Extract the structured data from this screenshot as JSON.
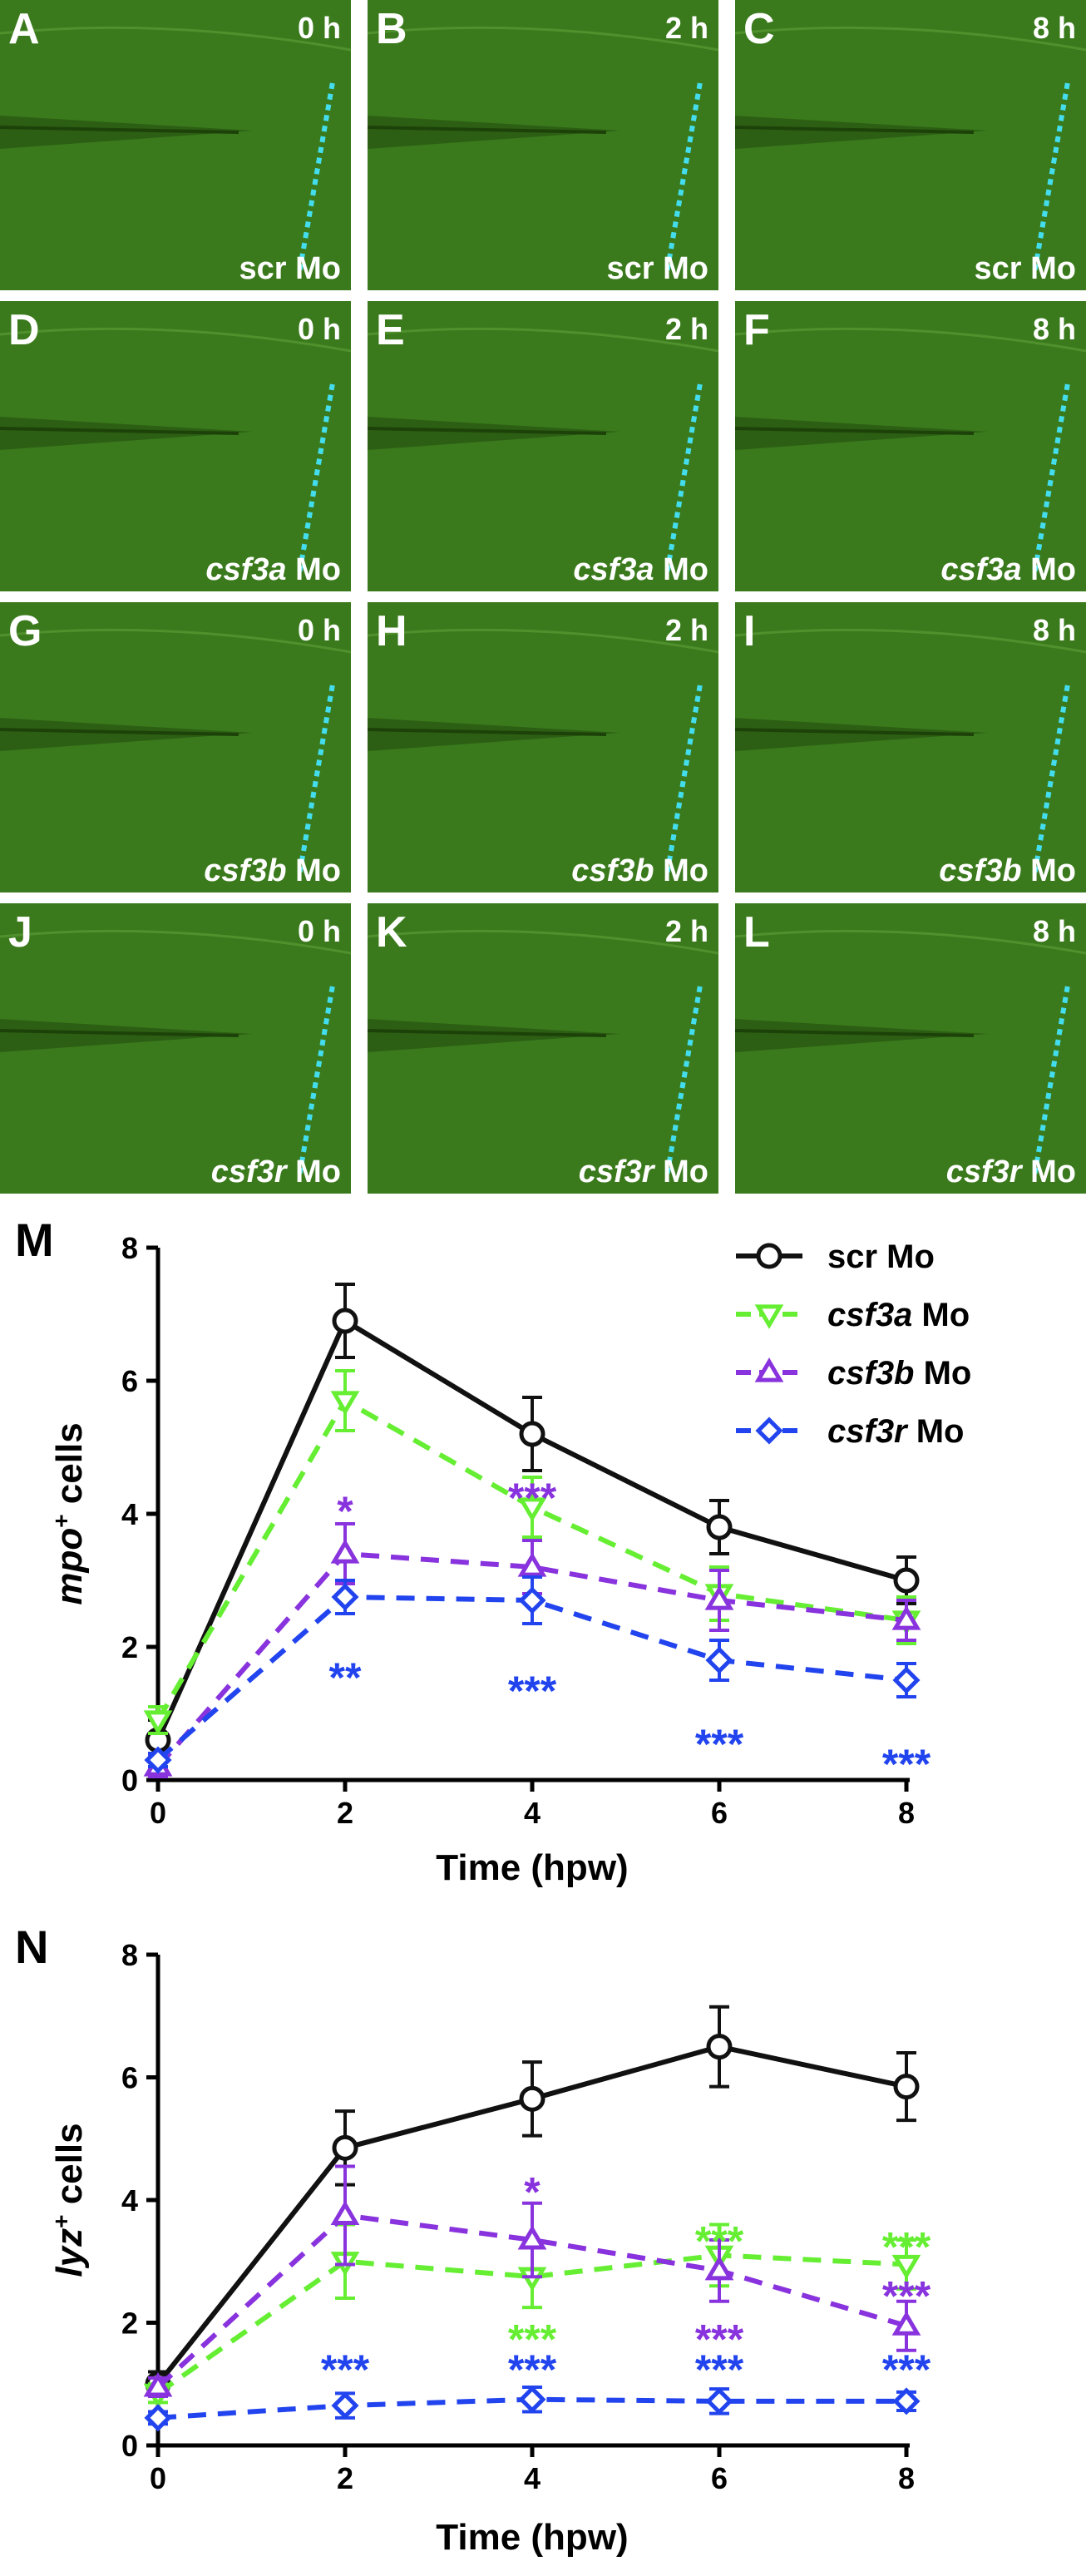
{
  "panels": [
    {
      "letter": "A",
      "time": "0 h",
      "treatment": "scr",
      "suffix": "Mo",
      "italic": false
    },
    {
      "letter": "B",
      "time": "2 h",
      "treatment": "scr",
      "suffix": "Mo",
      "italic": false
    },
    {
      "letter": "C",
      "time": "8 h",
      "treatment": "scr",
      "suffix": "Mo",
      "italic": false
    },
    {
      "letter": "D",
      "time": "0 h",
      "treatment": "csf3a",
      "suffix": "Mo",
      "italic": true
    },
    {
      "letter": "E",
      "time": "2 h",
      "treatment": "csf3a",
      "suffix": "Mo",
      "italic": true
    },
    {
      "letter": "F",
      "time": "8 h",
      "treatment": "csf3a",
      "suffix": "Mo",
      "italic": true
    },
    {
      "letter": "G",
      "time": "0 h",
      "treatment": "csf3b",
      "suffix": "Mo",
      "italic": true
    },
    {
      "letter": "H",
      "time": "2 h",
      "treatment": "csf3b",
      "suffix": "Mo",
      "italic": true
    },
    {
      "letter": "I",
      "time": "8 h",
      "treatment": "csf3b",
      "suffix": "Mo",
      "italic": true
    },
    {
      "letter": "J",
      "time": "0 h",
      "treatment": "csf3r",
      "suffix": "Mo",
      "italic": true
    },
    {
      "letter": "K",
      "time": "2 h",
      "treatment": "csf3r",
      "suffix": "Mo",
      "italic": true
    },
    {
      "letter": "L",
      "time": "8 h",
      "treatment": "csf3r",
      "suffix": "Mo",
      "italic": true
    }
  ],
  "colors": {
    "scr": "#111111",
    "csf3a": "#66ee33",
    "csf3b": "#8833dd",
    "csf3r": "#2244ee",
    "panel_green": "#3a7a1c",
    "wound_line": "#44ddee"
  },
  "chart_data": [
    {
      "panel_letter": "M",
      "type": "line",
      "xlabel": "Time (hpw)",
      "ylabel_main": "mpo",
      "ylabel_sup": "+",
      "ylabel_rest": " cells",
      "xlim": [
        0,
        8
      ],
      "ylim": [
        0,
        8
      ],
      "xticks": [
        0,
        2,
        4,
        6,
        8
      ],
      "yticks": [
        0,
        2,
        4,
        6,
        8
      ],
      "legend_position": "top-right",
      "x": [
        0,
        2,
        4,
        6,
        8
      ],
      "series": [
        {
          "name": "scr",
          "name_suffix": " Mo",
          "italic": false,
          "color_key": "scr",
          "marker": "circle",
          "dashed": false,
          "values": [
            0.6,
            6.9,
            5.2,
            3.8,
            3.0
          ],
          "errors": [
            0.3,
            0.55,
            0.55,
            0.4,
            0.35
          ]
        },
        {
          "name": "csf3a",
          "name_suffix": " Mo",
          "italic": true,
          "color_key": "csf3a",
          "marker": "triangle-down",
          "dashed": true,
          "values": [
            0.9,
            5.7,
            4.1,
            2.8,
            2.4
          ],
          "errors": [
            0.2,
            0.45,
            0.45,
            0.4,
            0.35
          ]
        },
        {
          "name": "csf3b",
          "name_suffix": " Mo",
          "italic": true,
          "color_key": "csf3b",
          "marker": "triangle-up",
          "dashed": true,
          "values": [
            0.2,
            3.4,
            3.2,
            2.7,
            2.4
          ],
          "errors": [
            0.15,
            0.45,
            0.4,
            0.45,
            0.3
          ]
        },
        {
          "name": "csf3r",
          "name_suffix": " Mo",
          "italic": true,
          "color_key": "csf3r",
          "marker": "diamond",
          "dashed": true,
          "values": [
            0.3,
            2.75,
            2.7,
            1.8,
            1.5
          ],
          "errors": [
            0.1,
            0.25,
            0.35,
            0.3,
            0.25
          ]
        }
      ],
      "annotations": [
        {
          "x": 2,
          "y": 4.1,
          "text": "*",
          "color_key": "csf3b"
        },
        {
          "x": 2,
          "y": 1.6,
          "text": "**",
          "color_key": "csf3r"
        },
        {
          "x": 4,
          "y": 4.3,
          "text": "***",
          "color_key": "csf3b"
        },
        {
          "x": 4,
          "y": 1.4,
          "text": "***",
          "color_key": "csf3r"
        },
        {
          "x": 6,
          "y": 0.6,
          "text": "***",
          "color_key": "csf3r"
        },
        {
          "x": 8,
          "y": 0.3,
          "text": "***",
          "color_key": "csf3r"
        }
      ]
    },
    {
      "panel_letter": "N",
      "type": "line",
      "xlabel": "Time (hpw)",
      "ylabel_main": "lyz",
      "ylabel_sup": "+",
      "ylabel_rest": " cells",
      "xlim": [
        0,
        8
      ],
      "ylim": [
        0,
        8
      ],
      "xticks": [
        0,
        2,
        4,
        6,
        8
      ],
      "yticks": [
        0,
        2,
        4,
        6,
        8
      ],
      "x": [
        0,
        2,
        4,
        6,
        8
      ],
      "series": [
        {
          "color_key": "scr",
          "marker": "circle",
          "dashed": false,
          "values": [
            1.0,
            4.85,
            5.65,
            6.5,
            5.85
          ],
          "errors": [
            0.2,
            0.6,
            0.6,
            0.65,
            0.55
          ]
        },
        {
          "color_key": "csf3a",
          "marker": "triangle-down",
          "dashed": true,
          "values": [
            0.85,
            3.0,
            2.75,
            3.1,
            2.95
          ],
          "errors": [
            0.15,
            0.6,
            0.5,
            0.5,
            0.4
          ]
        },
        {
          "color_key": "csf3b",
          "marker": "triangle-up",
          "dashed": true,
          "values": [
            0.95,
            3.75,
            3.35,
            2.85,
            1.95
          ],
          "errors": [
            0.15,
            0.8,
            0.6,
            0.5,
            0.4
          ]
        },
        {
          "color_key": "csf3r",
          "marker": "diamond",
          "dashed": true,
          "values": [
            0.45,
            0.65,
            0.75,
            0.72,
            0.72
          ],
          "errors": [
            0.1,
            0.2,
            0.2,
            0.2,
            0.15
          ]
        }
      ],
      "annotations": [
        {
          "x": 4,
          "y": 4.2,
          "text": "*",
          "color_key": "csf3b"
        },
        {
          "x": 4,
          "y": 1.8,
          "text": "***",
          "color_key": "csf3a"
        },
        {
          "x": 6,
          "y": 3.4,
          "text": "***",
          "color_key": "csf3a"
        },
        {
          "x": 6,
          "y": 1.8,
          "text": "***",
          "color_key": "csf3b"
        },
        {
          "x": 8,
          "y": 3.3,
          "text": "***",
          "color_key": "csf3a"
        },
        {
          "x": 8,
          "y": 2.5,
          "text": "***",
          "color_key": "csf3b"
        },
        {
          "x": 2,
          "y": 1.3,
          "text": "***",
          "color_key": "csf3r"
        },
        {
          "x": 4,
          "y": 1.3,
          "text": "***",
          "color_key": "csf3r"
        },
        {
          "x": 6,
          "y": 1.3,
          "text": "***",
          "color_key": "csf3r"
        },
        {
          "x": 8,
          "y": 1.3,
          "text": "***",
          "color_key": "csf3r"
        }
      ]
    }
  ]
}
